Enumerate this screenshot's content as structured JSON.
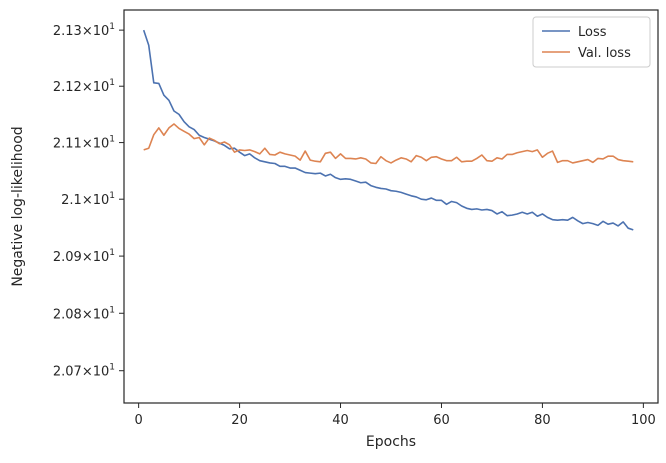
{
  "chart_data": {
    "type": "line",
    "title": "",
    "xlabel": "Epochs",
    "ylabel": "Negative log-likelihood",
    "xlim": [
      -2.9,
      102.9
    ],
    "ylim": [
      20.644,
      21.336
    ],
    "y_scale": "log",
    "grid": false,
    "legend_position": "top-right",
    "x_ticks": [
      0,
      20,
      40,
      60,
      80,
      100
    ],
    "x_tick_labels": [
      "0",
      "20",
      "40",
      "60",
      "80",
      "100"
    ],
    "y_ticks": [
      20.7,
      20.8,
      20.9,
      21.0,
      21.1,
      21.2,
      21.3
    ],
    "y_tick_labels": [
      {
        "mantissa": "2.07",
        "exp": "1"
      },
      {
        "mantissa": "2.08",
        "exp": "1"
      },
      {
        "mantissa": "2.09",
        "exp": "1"
      },
      {
        "mantissa": "2.1",
        "exp": "1"
      },
      {
        "mantissa": "2.11",
        "exp": "1"
      },
      {
        "mantissa": "2.12",
        "exp": "1"
      },
      {
        "mantissa": "2.13",
        "exp": "1"
      }
    ],
    "x": [
      1,
      2,
      3,
      4,
      5,
      6,
      7,
      8,
      9,
      10,
      11,
      12,
      13,
      14,
      15,
      16,
      17,
      18,
      19,
      20,
      21,
      22,
      23,
      24,
      25,
      26,
      27,
      28,
      29,
      30,
      31,
      32,
      33,
      34,
      35,
      36,
      37,
      38,
      39,
      40,
      41,
      42,
      43,
      44,
      45,
      46,
      47,
      48,
      49,
      50,
      51,
      52,
      53,
      54,
      55,
      56,
      57,
      58,
      59,
      60,
      61,
      62,
      63,
      64,
      65,
      66,
      67,
      68,
      69,
      70,
      71,
      72,
      73,
      74,
      75,
      76,
      77,
      78,
      79,
      80,
      81,
      82,
      83,
      84,
      85,
      86,
      87,
      88,
      89,
      90,
      91,
      92,
      93,
      94,
      95,
      96,
      97,
      98
    ],
    "series": [
      {
        "name": "Loss",
        "color": "#4c72b0",
        "values": [
          21.3,
          21.273,
          21.206,
          21.205,
          21.184,
          21.175,
          21.156,
          21.15,
          21.137,
          21.128,
          21.123,
          21.113,
          21.109,
          21.106,
          21.103,
          21.099,
          21.095,
          21.089,
          21.09,
          21.083,
          21.077,
          21.08,
          21.073,
          21.068,
          21.066,
          21.064,
          21.063,
          21.058,
          21.058,
          21.055,
          21.055,
          21.051,
          21.047,
          21.046,
          21.045,
          21.046,
          21.041,
          21.044,
          21.038,
          21.035,
          21.036,
          21.035,
          21.032,
          21.029,
          21.03,
          21.024,
          21.021,
          21.019,
          21.018,
          21.015,
          21.014,
          21.012,
          21.009,
          21.006,
          21.004,
          21.0,
          20.999,
          21.002,
          20.998,
          20.998,
          20.991,
          20.996,
          20.994,
          20.988,
          20.984,
          20.982,
          20.983,
          20.981,
          20.982,
          20.98,
          20.974,
          20.978,
          20.971,
          20.972,
          20.974,
          20.977,
          20.974,
          20.977,
          20.97,
          20.974,
          20.968,
          20.964,
          20.963,
          20.964,
          20.963,
          20.968,
          20.962,
          20.957,
          20.959,
          20.957,
          20.954,
          20.961,
          20.956,
          20.958,
          20.953,
          20.96,
          20.949,
          20.946
        ]
      },
      {
        "name": "Val. loss",
        "color": "#dd8452",
        "values": [
          21.087,
          21.09,
          21.114,
          21.126,
          21.113,
          21.126,
          21.133,
          21.125,
          21.12,
          21.115,
          21.107,
          21.109,
          21.096,
          21.108,
          21.104,
          21.098,
          21.101,
          21.096,
          21.083,
          21.087,
          21.086,
          21.087,
          21.084,
          21.08,
          21.09,
          21.079,
          21.078,
          21.083,
          21.08,
          21.078,
          21.076,
          21.069,
          21.085,
          21.069,
          21.067,
          21.066,
          21.081,
          21.083,
          21.072,
          21.08,
          21.072,
          21.072,
          21.071,
          21.073,
          21.071,
          21.064,
          21.063,
          21.075,
          21.068,
          21.064,
          21.069,
          21.073,
          21.071,
          21.066,
          21.077,
          21.074,
          21.068,
          21.074,
          21.075,
          21.071,
          21.068,
          21.068,
          21.074,
          21.066,
          21.067,
          21.067,
          21.072,
          21.078,
          21.068,
          21.067,
          21.073,
          21.071,
          21.079,
          21.079,
          21.082,
          21.084,
          21.086,
          21.084,
          21.087,
          21.074,
          21.081,
          21.085,
          21.065,
          21.068,
          21.068,
          21.064,
          21.066,
          21.068,
          21.07,
          21.065,
          21.072,
          21.071,
          21.076,
          21.076,
          21.07,
          21.068,
          21.067,
          21.066
        ]
      }
    ]
  }
}
